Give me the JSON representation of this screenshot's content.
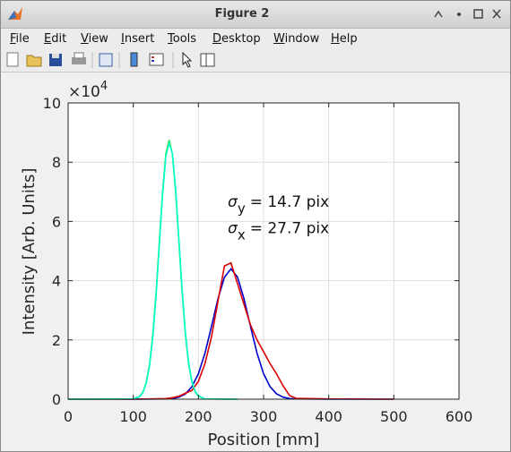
{
  "window": {
    "title": "Figure 2"
  },
  "menu": [
    "File",
    "Edit",
    "View",
    "Insert",
    "Tools",
    "Desktop",
    "Window",
    "Help"
  ],
  "chart_data": {
    "type": "line",
    "xlabel": "Position [mm]",
    "ylabel": "Intensity [Arb. Units]",
    "y_multiplier": {
      "base": "×10",
      "exponent": "4"
    },
    "xlim": [
      0,
      600
    ],
    "xticks": [
      0,
      100,
      200,
      300,
      400,
      500,
      600
    ],
    "ylim": [
      0,
      10
    ],
    "yticks": [
      0,
      2,
      4,
      6,
      8,
      10
    ],
    "grid": true,
    "annotations": [
      {
        "symbol": "σ",
        "subscript": "y",
        "text": "= 14.7 pix",
        "x": 245,
        "y": 6.5
      },
      {
        "symbol": "σ",
        "subscript": "x",
        "text": "= 27.7 pix",
        "x": 245,
        "y": 5.6
      }
    ],
    "series": [
      {
        "color": "#0000cc",
        "x": [
          0,
          100,
          150,
          160,
          170,
          180,
          190,
          200,
          210,
          220,
          230,
          240,
          250,
          260,
          270,
          280,
          290,
          300,
          310,
          320,
          330,
          340,
          350,
          400,
          500
        ],
        "values": [
          0,
          0,
          0.01,
          0.02,
          0.07,
          0.18,
          0.42,
          0.86,
          1.55,
          2.45,
          3.39,
          4.12,
          4.4,
          4.12,
          3.39,
          2.45,
          1.55,
          0.86,
          0.42,
          0.18,
          0.07,
          0.02,
          0.01,
          0,
          0
        ]
      },
      {
        "color": "#dd0000",
        "x": [
          0,
          100,
          150,
          160,
          170,
          180,
          190,
          200,
          210,
          220,
          230,
          240,
          250,
          260,
          270,
          280,
          290,
          300,
          310,
          320,
          330,
          340,
          350,
          400,
          500
        ],
        "values": [
          0,
          0,
          0.02,
          0.05,
          0.1,
          0.2,
          0.3,
          0.6,
          1.2,
          2.1,
          3.3,
          4.5,
          4.6,
          3.9,
          3.2,
          2.5,
          2.0,
          1.6,
          1.2,
          0.85,
          0.45,
          0.12,
          0.03,
          0.01,
          0
        ]
      },
      {
        "color": "#33dd33",
        "x": [
          0,
          100,
          110,
          115,
          120,
          125,
          130,
          135,
          140,
          145,
          150,
          155,
          160,
          165,
          170,
          175,
          180,
          185,
          190,
          195,
          200,
          210,
          260
        ],
        "values": [
          0,
          0.01,
          0.1,
          0.25,
          0.58,
          1.18,
          2.18,
          3.6,
          5.31,
          7.0,
          8.28,
          8.75,
          8.28,
          7.0,
          5.31,
          3.6,
          2.18,
          1.18,
          0.58,
          0.25,
          0.1,
          0.01,
          0
        ]
      },
      {
        "color": "#00ffcc",
        "x": [
          0,
          100,
          110,
          115,
          120,
          125,
          130,
          135,
          140,
          145,
          150,
          155,
          160,
          165,
          170,
          175,
          180,
          185,
          190,
          195,
          200,
          210,
          260
        ],
        "values": [
          0,
          0.01,
          0.09,
          0.23,
          0.55,
          1.12,
          2.1,
          3.5,
          5.2,
          6.9,
          8.2,
          8.65,
          8.3,
          7.1,
          5.4,
          3.7,
          2.25,
          1.22,
          0.6,
          0.27,
          0.11,
          0.01,
          0
        ]
      }
    ]
  }
}
